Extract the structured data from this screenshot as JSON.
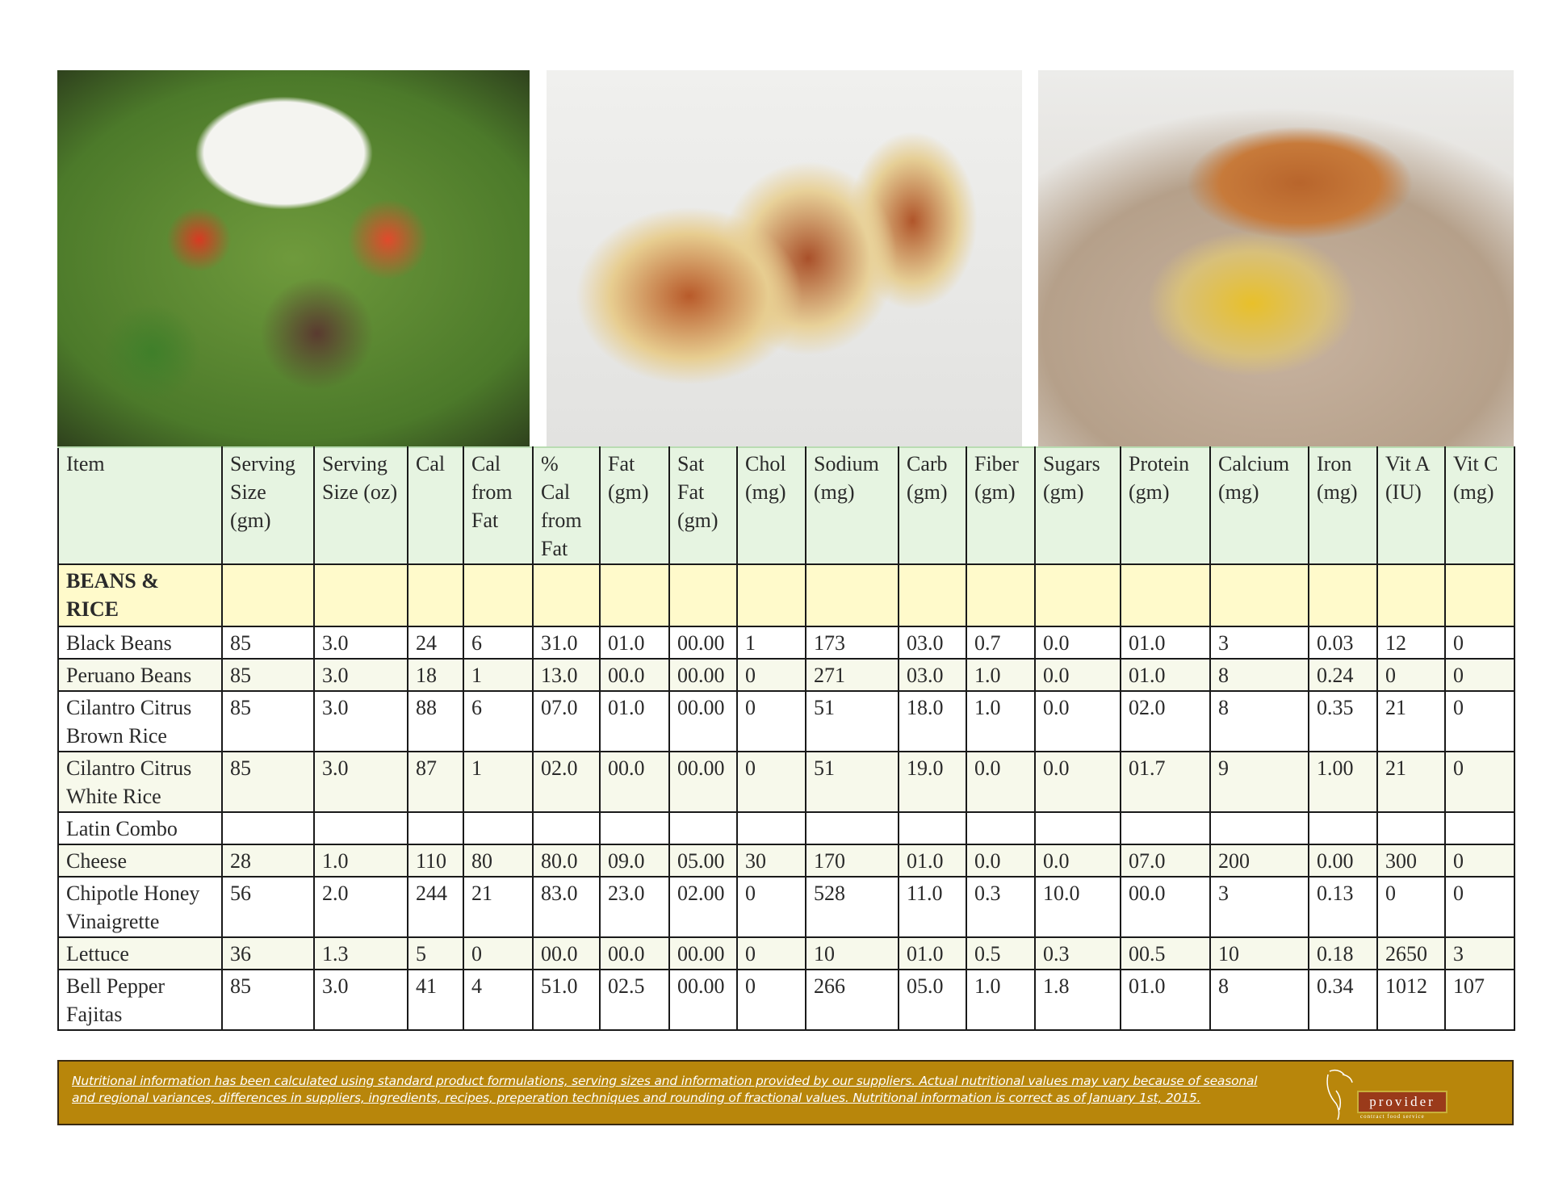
{
  "photos": [
    {
      "name": "steak-salad-bowl"
    },
    {
      "name": "chicken-tacos"
    },
    {
      "name": "chicken-rice-bowl"
    }
  ],
  "table": {
    "headers": [
      "Item",
      "Serving Size (gm)",
      "Serving Size (oz)",
      "Cal",
      "Cal from Fat",
      "% Cal from Fat",
      "Fat (gm)",
      "Sat Fat (gm)",
      "Chol (mg)",
      "Sodium (mg)",
      "Carb (gm)",
      "Fiber (gm)",
      "Sugars (gm)",
      "Protein (gm)",
      "Calcium (mg)",
      "Iron (mg)",
      "Vit A (IU)",
      "Vit C (mg)"
    ],
    "section": "BEANS & RICE",
    "rows": [
      [
        "Black Beans",
        "85",
        "3.0",
        "24",
        "6",
        "31.0",
        "01.0",
        "00.00",
        "1",
        "173",
        "03.0",
        "0.7",
        "0.0",
        "01.0",
        "3",
        "0.03",
        "12",
        "0"
      ],
      [
        "Peruano Beans",
        "85",
        "3.0",
        "18",
        "1",
        "13.0",
        "00.0",
        "00.00",
        "0",
        "271",
        "03.0",
        "1.0",
        "0.0",
        "01.0",
        "8",
        "0.24",
        "0",
        "0"
      ],
      [
        "Cilantro Citrus Brown Rice",
        "85",
        "3.0",
        "88",
        "6",
        "07.0",
        "01.0",
        "00.00",
        "0",
        "51",
        "18.0",
        "1.0",
        "0.0",
        "02.0",
        "8",
        "0.35",
        "21",
        "0"
      ],
      [
        "Cilantro Citrus White Rice",
        "85",
        "3.0",
        "87",
        "1",
        "02.0",
        "00.0",
        "00.00",
        "0",
        "51",
        "19.0",
        "0.0",
        "0.0",
        "01.7",
        "9",
        "1.00",
        "21",
        "0"
      ],
      [
        "Latin Combo",
        "",
        "",
        "",
        "",
        "",
        "",
        "",
        "",
        "",
        "",
        "",
        "",
        "",
        "",
        "",
        "",
        ""
      ],
      [
        "Cheese",
        "28",
        "1.0",
        "110",
        "80",
        "80.0",
        "09.0",
        "05.00",
        "30",
        "170",
        "01.0",
        "0.0",
        "0.0",
        "07.0",
        "200",
        "0.00",
        "300",
        "0"
      ],
      [
        "Chipotle Honey Vinaigrette",
        "56",
        "2.0",
        "244",
        "21",
        "83.0",
        "23.0",
        "02.00",
        "0",
        "528",
        "11.0",
        "0.3",
        "10.0",
        "00.0",
        "3",
        "0.13",
        "0",
        "0"
      ],
      [
        "Lettuce",
        "36",
        "1.3",
        "5",
        "0",
        "00.0",
        "00.0",
        "00.00",
        "0",
        "10",
        "01.0",
        "0.5",
        "0.3",
        "00.5",
        "10",
        "0.18",
        "2650",
        "3"
      ],
      [
        "Bell Pepper Fajitas",
        "85",
        "3.0",
        "41",
        "4",
        "51.0",
        "02.5",
        "00.00",
        "0",
        "266",
        "05.0",
        "1.0",
        "1.8",
        "01.0",
        "8",
        "0.34",
        "1012",
        "107"
      ]
    ]
  },
  "footer": {
    "note": "Nutritional information has been calculated using standard product formulations, serving sizes and information provided by our suppliers.  Actual nutritional values may vary because of seasonal and regional variances, differences in suppliers, ingredients, recipes, preperation techniques and rounding of fractional values. Nutritional information is correct as of January 1st, 2015.",
    "logo_text": "provider",
    "logo_tagline": "contract food service"
  },
  "colors": {
    "header_bg": "#e6f4e1",
    "section_bg": "#fffacb",
    "alt_row_bg": "#f7f9eb",
    "footer_bg": "#b8860b",
    "logo_red": "#9a3a1a"
  }
}
